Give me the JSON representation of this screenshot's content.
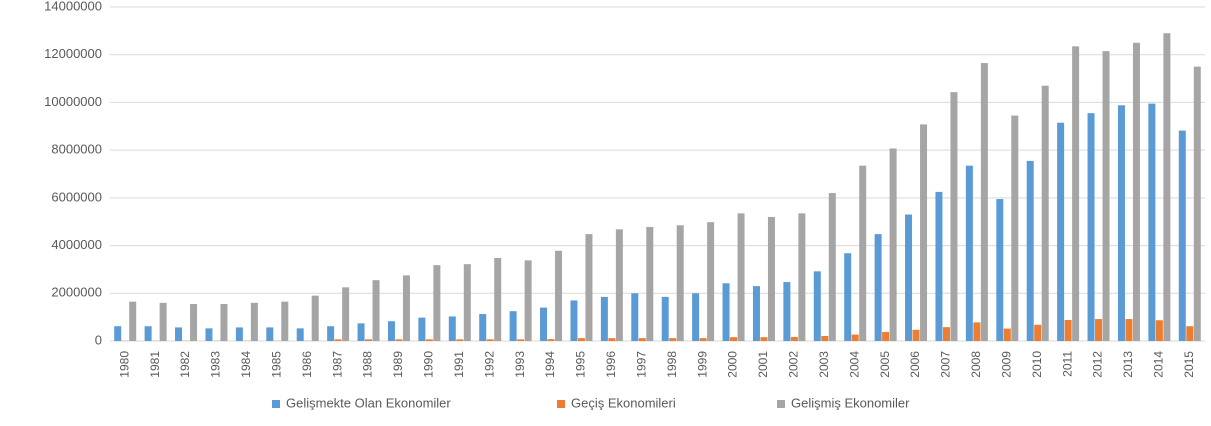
{
  "chart_data": {
    "type": "bar",
    "categories": [
      "1980",
      "1981",
      "1982",
      "1983",
      "1984",
      "1985",
      "1986",
      "1987",
      "1988",
      "1989",
      "1990",
      "1991",
      "1992",
      "1993",
      "1994",
      "1995",
      "1996",
      "1997",
      "1998",
      "1999",
      "2000",
      "2001",
      "2002",
      "2003",
      "2004",
      "2005",
      "2006",
      "2007",
      "2008",
      "2009",
      "2010",
      "2011",
      "2012",
      "2013",
      "2014",
      "2015"
    ],
    "series": [
      {
        "name": "Gelişmekte Olan Ekonomiler",
        "color": "#5b9bd5",
        "values": [
          620000,
          620000,
          570000,
          530000,
          570000,
          570000,
          530000,
          620000,
          740000,
          830000,
          980000,
          1030000,
          1130000,
          1250000,
          1400000,
          1700000,
          1850000,
          2000000,
          1850000,
          2000000,
          2420000,
          2300000,
          2470000,
          2920000,
          3680000,
          4480000,
          5300000,
          6250000,
          7350000,
          5950000,
          7550000,
          9150000,
          9550000,
          9880000,
          9950000,
          8820000
        ]
      },
      {
        "name": "Geçiş Ekonomileri",
        "color": "#ed7d31",
        "values": [
          10000,
          10000,
          10000,
          10000,
          10000,
          10000,
          10000,
          70000,
          70000,
          70000,
          70000,
          70000,
          70000,
          70000,
          80000,
          120000,
          120000,
          120000,
          120000,
          120000,
          160000,
          160000,
          170000,
          210000,
          270000,
          380000,
          470000,
          580000,
          780000,
          520000,
          680000,
          880000,
          920000,
          920000,
          870000,
          620000
        ]
      },
      {
        "name": "Gelişmiş Ekonomiler",
        "color": "#a5a5a5",
        "values": [
          1650000,
          1600000,
          1550000,
          1550000,
          1600000,
          1650000,
          1900000,
          2250000,
          2550000,
          2750000,
          3180000,
          3220000,
          3480000,
          3380000,
          3780000,
          4480000,
          4680000,
          4780000,
          4850000,
          4980000,
          5350000,
          5200000,
          5350000,
          6200000,
          7350000,
          8070000,
          9080000,
          10430000,
          11650000,
          9450000,
          10700000,
          12350000,
          12150000,
          12500000,
          12900000,
          11500000
        ]
      }
    ],
    "ylim": [
      0,
      14000000
    ],
    "yticks": [
      0,
      2000000,
      4000000,
      6000000,
      8000000,
      10000000,
      12000000,
      14000000
    ],
    "grid": true,
    "legend": "bottom"
  }
}
